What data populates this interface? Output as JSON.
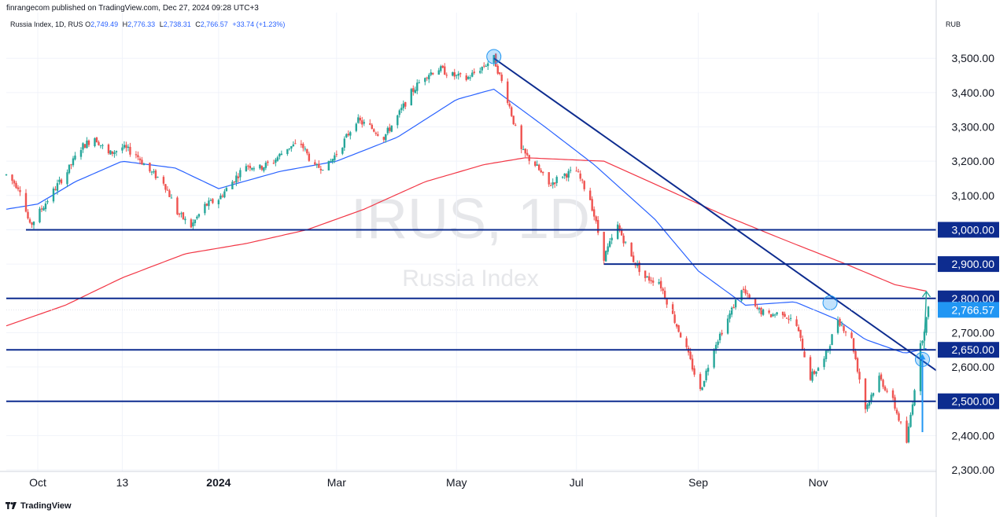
{
  "header": {
    "text": "finrangecom published on TradingView.com, Dec 27, 2024 09:28 UTC+3"
  },
  "legend": {
    "symbol": "Russia Index, 1D, RUS",
    "o_label": "O",
    "o": "2,749.49",
    "h_label": "H",
    "h": "2,776.33",
    "l_label": "L",
    "l": "2,738.31",
    "c_label": "C",
    "c": "2,766.57",
    "change": "+33.74 (+1.23%)"
  },
  "currency": "RUB",
  "watermark": {
    "ticker": "IRUS, 1D",
    "name": "Russia Index"
  },
  "footer": {
    "logo_icon": "tradingview-logo-icon",
    "brand": "TradingView"
  },
  "colors": {
    "up": "#26a69a",
    "down": "#ef5350",
    "sma_fast": "#2962ff",
    "sma_slow": "#f23645",
    "level": "#0d2c8f",
    "trend": "#0d2c8f",
    "price_tag": "#2196f3",
    "arrow": "#2196f3",
    "target_arrow": "#26a69a"
  },
  "chart_data": {
    "type": "candlestick",
    "title": "Russia Index, 1D",
    "y_axis_label": "RUB",
    "ylim": [
      2300,
      3560
    ],
    "y_ticks": [
      "2,300.00",
      "2,400.00",
      "2,500.00",
      "2,600.00",
      "2,700.00",
      "2,800.00",
      "2,900.00",
      "3,000.00",
      "3,100.00",
      "3,200.00",
      "3,300.00",
      "3,400.00",
      "3,500.00"
    ],
    "x_ticks": [
      {
        "label": "Oct",
        "date": "2023-10-01",
        "bold": false
      },
      {
        "label": "13",
        "date": "2023-11-13",
        "bold": false
      },
      {
        "label": "2024",
        "date": "2024-01-01",
        "bold": true
      },
      {
        "label": "Mar",
        "date": "2024-03-01",
        "bold": false
      },
      {
        "label": "May",
        "date": "2024-05-01",
        "bold": false
      },
      {
        "label": "Jul",
        "date": "2024-07-01",
        "bold": false
      },
      {
        "label": "Sep",
        "date": "2024-09-01",
        "bold": false
      },
      {
        "label": "Nov",
        "date": "2024-11-01",
        "bold": false
      }
    ],
    "x_range": [
      "2023-09-15",
      "2024-12-31"
    ],
    "price_path": [
      [
        "2023-09-15",
        3160
      ],
      [
        "2023-09-22",
        3120
      ],
      [
        "2023-09-27",
        3010
      ],
      [
        "2023-10-04",
        3070
      ],
      [
        "2023-10-11",
        3130
      ],
      [
        "2023-10-16",
        3170
      ],
      [
        "2023-10-23",
        3240
      ],
      [
        "2023-10-30",
        3270
      ],
      [
        "2023-11-06",
        3220
      ],
      [
        "2023-11-13",
        3240
      ],
      [
        "2023-11-20",
        3220
      ],
      [
        "2023-11-27",
        3170
      ],
      [
        "2023-12-04",
        3140
      ],
      [
        "2023-12-11",
        3050
      ],
      [
        "2023-12-18",
        3010
      ],
      [
        "2023-12-25",
        3070
      ],
      [
        "2024-01-01",
        3090
      ],
      [
        "2024-01-08",
        3140
      ],
      [
        "2024-01-15",
        3190
      ],
      [
        "2024-01-22",
        3180
      ],
      [
        "2024-01-29",
        3200
      ],
      [
        "2024-02-05",
        3240
      ],
      [
        "2024-02-12",
        3250
      ],
      [
        "2024-02-19",
        3180
      ],
      [
        "2024-02-26",
        3190
      ],
      [
        "2024-03-04",
        3250
      ],
      [
        "2024-03-11",
        3320
      ],
      [
        "2024-03-18",
        3300
      ],
      [
        "2024-03-25",
        3270
      ],
      [
        "2024-04-01",
        3330
      ],
      [
        "2024-04-08",
        3400
      ],
      [
        "2024-04-15",
        3450
      ],
      [
        "2024-04-22",
        3470
      ],
      [
        "2024-04-29",
        3450
      ],
      [
        "2024-05-06",
        3440
      ],
      [
        "2024-05-13",
        3470
      ],
      [
        "2024-05-20",
        3500
      ],
      [
        "2024-05-27",
        3380
      ],
      [
        "2024-06-03",
        3230
      ],
      [
        "2024-06-10",
        3190
      ],
      [
        "2024-06-17",
        3130
      ],
      [
        "2024-06-24",
        3160
      ],
      [
        "2024-07-01",
        3170
      ],
      [
        "2024-07-08",
        3090
      ],
      [
        "2024-07-15",
        2920
      ],
      [
        "2024-07-22",
        3010
      ],
      [
        "2024-07-29",
        2920
      ],
      [
        "2024-08-05",
        2860
      ],
      [
        "2024-08-12",
        2850
      ],
      [
        "2024-08-19",
        2750
      ],
      [
        "2024-08-26",
        2650
      ],
      [
        "2024-09-02",
        2530
      ],
      [
        "2024-09-09",
        2660
      ],
      [
        "2024-09-16",
        2740
      ],
      [
        "2024-09-23",
        2830
      ],
      [
        "2024-09-30",
        2770
      ],
      [
        "2024-10-07",
        2750
      ],
      [
        "2024-10-14",
        2760
      ],
      [
        "2024-10-21",
        2720
      ],
      [
        "2024-10-28",
        2570
      ],
      [
        "2024-11-04",
        2620
      ],
      [
        "2024-11-11",
        2740
      ],
      [
        "2024-11-18",
        2680
      ],
      [
        "2024-11-25",
        2480
      ],
      [
        "2024-12-02",
        2570
      ],
      [
        "2024-12-09",
        2500
      ],
      [
        "2024-12-16",
        2380
      ],
      [
        "2024-12-23",
        2660
      ],
      [
        "2024-12-27",
        2766.57
      ]
    ],
    "sma_fast_path": [
      [
        "2023-09-15",
        3060
      ],
      [
        "2023-10-01",
        3075
      ],
      [
        "2023-10-20",
        3140
      ],
      [
        "2023-11-13",
        3200
      ],
      [
        "2023-12-10",
        3180
      ],
      [
        "2024-01-01",
        3120
      ],
      [
        "2024-02-01",
        3170
      ],
      [
        "2024-03-01",
        3200
      ],
      [
        "2024-04-01",
        3270
      ],
      [
        "2024-05-01",
        3380
      ],
      [
        "2024-05-20",
        3410
      ],
      [
        "2024-06-15",
        3300
      ],
      [
        "2024-07-10",
        3190
      ],
      [
        "2024-08-10",
        3030
      ],
      [
        "2024-09-01",
        2880
      ],
      [
        "2024-09-25",
        2780
      ],
      [
        "2024-10-20",
        2790
      ],
      [
        "2024-11-10",
        2740
      ],
      [
        "2024-11-25",
        2680
      ],
      [
        "2024-12-15",
        2640
      ],
      [
        "2024-12-27",
        2655
      ]
    ],
    "sma_slow_path": [
      [
        "2023-09-15",
        2720
      ],
      [
        "2023-10-15",
        2780
      ],
      [
        "2023-11-13",
        2860
      ],
      [
        "2023-12-15",
        2930
      ],
      [
        "2024-01-15",
        2960
      ],
      [
        "2024-02-15",
        3000
      ],
      [
        "2024-03-15",
        3060
      ],
      [
        "2024-04-15",
        3140
      ],
      [
        "2024-05-15",
        3190
      ],
      [
        "2024-06-05",
        3210
      ],
      [
        "2024-07-15",
        3200
      ],
      [
        "2024-08-15",
        3120
      ],
      [
        "2024-09-15",
        3040
      ],
      [
        "2024-10-15",
        2970
      ],
      [
        "2024-11-15",
        2900
      ],
      [
        "2024-12-10",
        2840
      ],
      [
        "2024-12-27",
        2820
      ]
    ],
    "horizontal_levels": [
      {
        "value": 3000,
        "label": "3,000.00",
        "start": "2023-09-25"
      },
      {
        "value": 2900,
        "label": "2,900.00",
        "start": "2024-07-15"
      },
      {
        "value": 2800,
        "label": "2,800.00",
        "start": "2023-09-15"
      },
      {
        "value": 2650,
        "label": "2,650.00",
        "start": "2023-09-15"
      },
      {
        "value": 2500,
        "label": "2,500.00",
        "start": "2023-09-15"
      }
    ],
    "trendline": {
      "start": [
        "2024-05-20",
        3500
      ],
      "end": [
        "2024-12-31",
        2590
      ]
    },
    "markers": [
      {
        "date": "2024-05-20",
        "value": 3505
      },
      {
        "date": "2024-11-07",
        "value": 2787
      },
      {
        "date": "2024-12-24",
        "value": 2622
      }
    ],
    "breakout_arrow": {
      "date": "2024-12-24",
      "from": 2410,
      "to": 2638
    },
    "target_arrow": {
      "date": "2024-12-26",
      "from": 2650,
      "to": 2820
    },
    "last_price": {
      "value": 2766.57,
      "label": "2,766.57"
    }
  }
}
